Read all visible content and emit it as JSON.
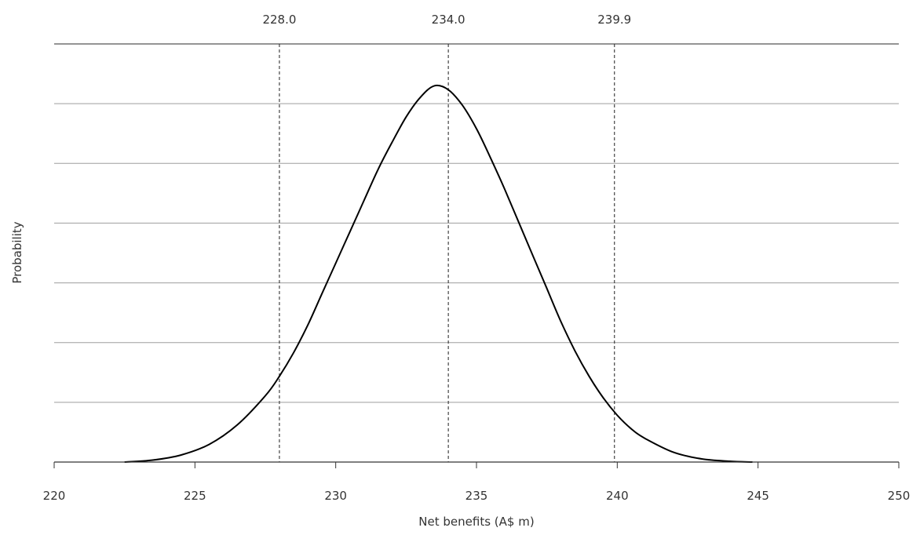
{
  "chart_data": {
    "type": "line",
    "title": "",
    "xlabel": "Net benefits (A$ m)",
    "ylabel": "Probability",
    "xlim": [
      220,
      250
    ],
    "x_ticks": [
      "220",
      "225",
      "230",
      "235",
      "240",
      "245",
      "250"
    ],
    "y_tick_labels_shown": false,
    "grid": "horizontal",
    "series": [
      {
        "color": "#000000",
        "x": [
          222.5,
          223.5,
          224.5,
          225.5,
          226.5,
          227.5,
          228.0,
          228.5,
          229.0,
          229.5,
          230.0,
          230.5,
          231.0,
          231.5,
          232.0,
          232.5,
          233.0,
          233.5,
          234.0,
          234.5,
          235.0,
          235.5,
          236.0,
          236.5,
          237.0,
          237.5,
          238.0,
          238.5,
          239.0,
          239.5,
          240.0,
          240.5,
          241.0,
          242.0,
          243.0,
          244.0,
          244.8
        ],
        "y": [
          0.0,
          0.005,
          0.018,
          0.045,
          0.095,
          0.17,
          0.22,
          0.28,
          0.35,
          0.43,
          0.51,
          0.59,
          0.67,
          0.75,
          0.82,
          0.885,
          0.935,
          0.965,
          0.955,
          0.915,
          0.855,
          0.78,
          0.7,
          0.615,
          0.53,
          0.445,
          0.36,
          0.285,
          0.22,
          0.165,
          0.12,
          0.085,
          0.06,
          0.025,
          0.008,
          0.002,
          0.0
        ]
      }
    ],
    "reference_lines": [
      {
        "x": 228.0,
        "label": "228.0",
        "style": "dashed"
      },
      {
        "x": 234.0,
        "label": "234.0",
        "style": "dashed"
      },
      {
        "x": 239.9,
        "label": "239.9",
        "style": "dashed"
      }
    ],
    "colors": {
      "curve": "#000000",
      "grid": "#9e9e9e",
      "axis": "#333333",
      "reference": "#333333"
    }
  }
}
